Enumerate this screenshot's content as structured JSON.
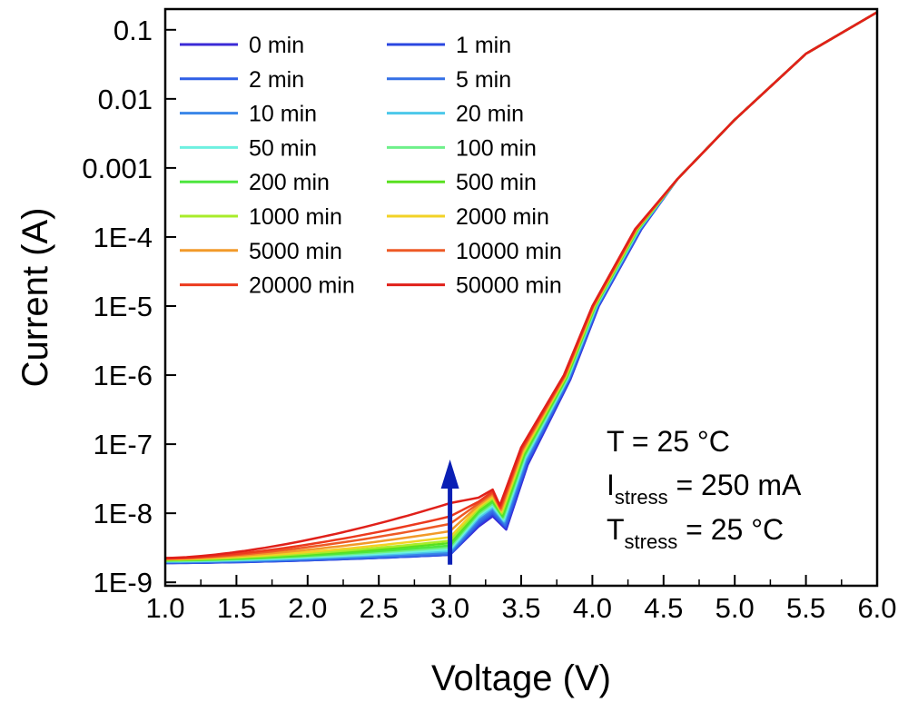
{
  "chart_data": {
    "type": "line",
    "title": "",
    "xlabel": "Voltage (V)",
    "ylabel": "Current (A)",
    "xlim": [
      1.0,
      6.0
    ],
    "ylim_log10": [
      -9.05,
      -0.7
    ],
    "yscale": "log",
    "x_ticks": [
      1.0,
      1.5,
      2.0,
      2.5,
      3.0,
      3.5,
      4.0,
      4.5,
      5.0,
      5.5,
      6.0
    ],
    "x_tick_labels": [
      "1.0",
      "1.5",
      "2.0",
      "2.5",
      "3.0",
      "3.5",
      "4.0",
      "4.5",
      "5.0",
      "5.5",
      "6.0"
    ],
    "y_ticks_log10": [
      -1,
      -2,
      -3,
      -4,
      -5,
      -6,
      -7,
      -8,
      -9
    ],
    "y_tick_labels": [
      "0.1",
      "0.01",
      "0.001",
      "1E-4",
      "1E-5",
      "1E-6",
      "1E-7",
      "1E-8",
      "1E-9"
    ],
    "legend_position": "top-left",
    "series": [
      {
        "name": "0 min",
        "color": "#3b2ad6",
        "low_current_at_1V_A": 1.9e-09,
        "low_current_at_3V_A": 2.5e-09
      },
      {
        "name": "1 min",
        "color": "#2a46e0",
        "low_current_at_1V_A": 1.9e-09,
        "low_current_at_3V_A": 2.5e-09
      },
      {
        "name": "2 min",
        "color": "#2f5fe6",
        "low_current_at_1V_A": 1.92e-09,
        "low_current_at_3V_A": 2.55e-09
      },
      {
        "name": "5 min",
        "color": "#3470e6",
        "low_current_at_1V_A": 1.95e-09,
        "low_current_at_3V_A": 2.6e-09
      },
      {
        "name": "10 min",
        "color": "#3a86e8",
        "low_current_at_1V_A": 1.97e-09,
        "low_current_at_3V_A": 2.7e-09
      },
      {
        "name": "20 min",
        "color": "#4cc8ea",
        "low_current_at_1V_A": 2e-09,
        "low_current_at_3V_A": 2.85e-09
      },
      {
        "name": "50 min",
        "color": "#6ef0e0",
        "low_current_at_1V_A": 2.02e-09,
        "low_current_at_3V_A": 3e-09
      },
      {
        "name": "100 min",
        "color": "#6ef08a",
        "low_current_at_1V_A": 2.05e-09,
        "low_current_at_3V_A": 3.2e-09
      },
      {
        "name": "200 min",
        "color": "#4de63e",
        "low_current_at_1V_A": 2.07e-09,
        "low_current_at_3V_A": 3.4e-09
      },
      {
        "name": "500 min",
        "color": "#58e020",
        "low_current_at_1V_A": 2.1e-09,
        "low_current_at_3V_A": 3.7e-09
      },
      {
        "name": "1000 min",
        "color": "#a8ec2a",
        "low_current_at_1V_A": 2.12e-09,
        "low_current_at_3V_A": 4e-09
      },
      {
        "name": "2000 min",
        "color": "#f2d226",
        "low_current_at_1V_A": 2.15e-09,
        "low_current_at_3V_A": 4.5e-09
      },
      {
        "name": "5000 min",
        "color": "#f29a2a",
        "low_current_at_1V_A": 2.18e-09,
        "low_current_at_3V_A": 5.5e-09
      },
      {
        "name": "10000 min",
        "color": "#ee5a26",
        "low_current_at_1V_A": 2.2e-09,
        "low_current_at_3V_A": 7e-09
      },
      {
        "name": "20000 min",
        "color": "#ec3a1e",
        "low_current_at_1V_A": 2.22e-09,
        "low_current_at_3V_A": 9e-09
      },
      {
        "name": "50000 min",
        "color": "#e0201a",
        "low_current_at_1V_A": 2.25e-09,
        "low_current_at_3V_A": 1.4e-08
      }
    ],
    "arrow": {
      "x": 3.0,
      "y_from_A": 1.8e-09,
      "y_to_A": 6e-08,
      "color": "#0a1fb5"
    },
    "annotation_lines": [
      {
        "main": "T = 25 °C",
        "sub": "",
        "rest": ""
      },
      {
        "main": "I",
        "sub": "stress",
        "rest": " = 250 mA"
      },
      {
        "main": "T",
        "sub": "stress",
        "rest": " = 25 °C"
      }
    ]
  }
}
